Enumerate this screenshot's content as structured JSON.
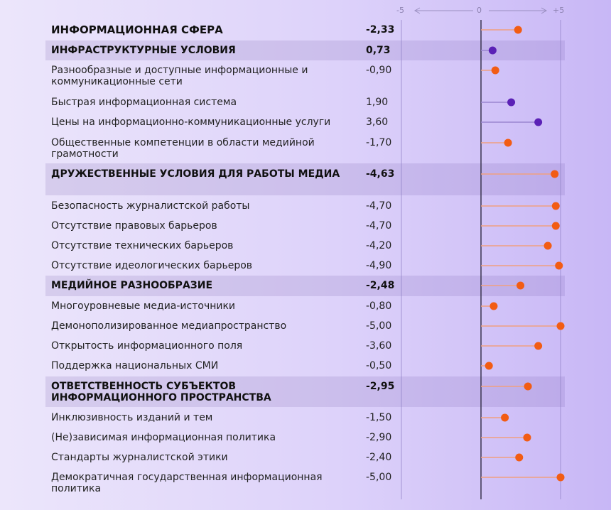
{
  "chart_data": {
    "type": "lollipop",
    "xlim": [
      -5,
      5
    ],
    "axis_ticks": [
      "-5",
      "0",
      "+5"
    ],
    "colors": {
      "negative": "#f25c14",
      "positive": "#5b21b6",
      "negative_stem": "#f0a080",
      "positive_stem": "#9a86d0"
    },
    "rows": [
      {
        "label": "ИНФОРМАЦИОННАЯ СФЕРА",
        "value_label": "-2,33",
        "value": -2.33,
        "level": "total"
      },
      {
        "label": "ИНФРАСТРУКТУРНЫЕ УСЛОВИЯ",
        "value_label": "0,73",
        "value": 0.73,
        "level": "section"
      },
      {
        "label": "Разнообразные и доступные информационные и коммуникационные сети",
        "value_label": "-0,90",
        "value": -0.9,
        "level": "item"
      },
      {
        "label": "Быстрая информационная система",
        "value_label": "1,90",
        "value": 1.9,
        "level": "item"
      },
      {
        "label": "Цены на информационно-коммуникационные услуги",
        "value_label": "3,60",
        "value": 3.6,
        "level": "item"
      },
      {
        "label": "Общественные компетенции в области медийной грамотности",
        "value_label": "-1,70",
        "value": -1.7,
        "level": "item"
      },
      {
        "label": "ДРУЖЕСТВЕННЫЕ УСЛОВИЯ ДЛЯ РАБОТЫ МЕДИА",
        "value_label": "-4,63",
        "value": -4.63,
        "level": "section"
      },
      {
        "label": "Безопасность журналистской работы",
        "value_label": "-4,70",
        "value": -4.7,
        "level": "item"
      },
      {
        "label": "Отсутствие правовых барьеров",
        "value_label": "-4,70",
        "value": -4.7,
        "level": "item"
      },
      {
        "label": "Отсутствие технических барьеров",
        "value_label": "-4,20",
        "value": -4.2,
        "level": "item"
      },
      {
        "label": "Отсутствие идеологических барьеров",
        "value_label": "-4,90",
        "value": -4.9,
        "level": "item"
      },
      {
        "label": "МЕДИЙНОЕ РАЗНООБРАЗИЕ",
        "value_label": "-2,48",
        "value": -2.48,
        "level": "section"
      },
      {
        "label": "Многоуровневые медиа-источники",
        "value_label": "-0,80",
        "value": -0.8,
        "level": "item"
      },
      {
        "label": "Демонополизированное медиапространство",
        "value_label": "-5,00",
        "value": -5.0,
        "level": "item"
      },
      {
        "label": "Открытость информационного поля",
        "value_label": "-3,60",
        "value": -3.6,
        "level": "item"
      },
      {
        "label": "Поддержка национальных СМИ",
        "value_label": "-0,50",
        "value": -0.5,
        "level": "item"
      },
      {
        "label": "ОТВЕТСТВЕННОСТЬ СУБЪЕКТОВ ИНФОРМАЦИОННОГО ПРОСТРАНСТВА",
        "value_label": "-2,95",
        "value": -2.95,
        "level": "section"
      },
      {
        "label": "Инклюзивность изданий и тем",
        "value_label": "-1,50",
        "value": -1.5,
        "level": "item"
      },
      {
        "label": "(Не)зависимая информационная политика",
        "value_label": "-2,90",
        "value": -2.9,
        "level": "item"
      },
      {
        "label": "Стандарты журналистской этики",
        "value_label": "-2,40",
        "value": -2.4,
        "level": "item"
      },
      {
        "label": "Демократичная государственная информационная политика",
        "value_label": "-5,00",
        "value": -5.0,
        "level": "item"
      }
    ]
  }
}
